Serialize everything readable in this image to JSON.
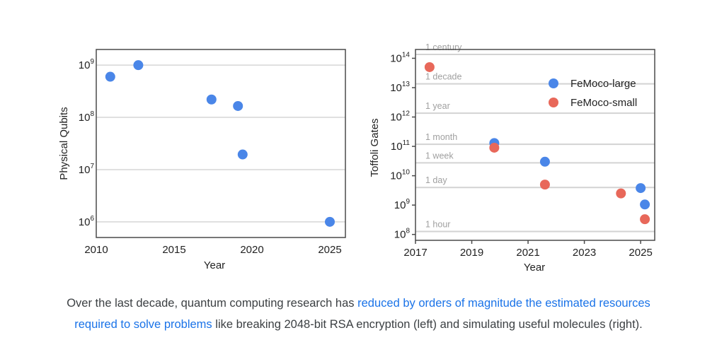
{
  "chart_data": [
    {
      "type": "scatter",
      "xlabel": "Year",
      "ylabel": "Physical Qubits",
      "yscale": "log",
      "xlim": [
        2010,
        2026
      ],
      "ylim_log10": [
        5.7,
        9.3
      ],
      "xticks": [
        2010,
        2015,
        2020,
        2025
      ],
      "ytick_exponents": [
        6,
        7,
        8,
        9
      ],
      "grid": "horizontal",
      "series": [
        {
          "name": "Physical qubits",
          "color": "#4a86e8",
          "points": [
            {
              "x": 2010.9,
              "y": 600000000
            },
            {
              "x": 2012.7,
              "y": 1000000000
            },
            {
              "x": 2017.4,
              "y": 220000000
            },
            {
              "x": 2019.1,
              "y": 165000000
            },
            {
              "x": 2019.4,
              "y": 19500000
            },
            {
              "x": 2025.0,
              "y": 1000000
            }
          ]
        }
      ]
    },
    {
      "type": "scatter",
      "xlabel": "Year",
      "ylabel": "Toffoli Gates",
      "yscale": "log",
      "xlim": [
        2017,
        2025.5
      ],
      "ylim_log10": [
        7.8,
        14.3
      ],
      "xticks": [
        2017,
        2019,
        2021,
        2023,
        2025
      ],
      "ytick_exponents": [
        8,
        9,
        10,
        11,
        12,
        13,
        14
      ],
      "time_lines": [
        {
          "label": "1 century",
          "log10": 14.13
        },
        {
          "label": "1 decade",
          "log10": 13.13
        },
        {
          "label": "1 year",
          "log10": 12.13
        },
        {
          "label": "1 month",
          "log10": 11.07
        },
        {
          "label": "1 week",
          "log10": 10.44
        },
        {
          "label": "1 day",
          "log10": 9.6
        },
        {
          "label": "1 hour",
          "log10": 8.1
        }
      ],
      "legend_position": "top-right",
      "series": [
        {
          "name": "FeMoco-large",
          "color": "#4a86e8",
          "points": [
            {
              "x": 2019.8,
              "y": 130000000000
            },
            {
              "x": 2021.6,
              "y": 30000000000
            },
            {
              "x": 2025.0,
              "y": 3800000000
            },
            {
              "x": 2025.15,
              "y": 1050000000
            }
          ]
        },
        {
          "name": "FeMoco-small",
          "color": "#e8685a",
          "points": [
            {
              "x": 2017.5,
              "y": 50000000000000
            },
            {
              "x": 2019.8,
              "y": 90000000000
            },
            {
              "x": 2021.6,
              "y": 5000000000
            },
            {
              "x": 2024.3,
              "y": 2500000000
            },
            {
              "x": 2025.15,
              "y": 330000000
            }
          ]
        }
      ]
    }
  ],
  "caption": {
    "before": "Over the last decade, quantum computing research has ",
    "link_line1": "reduced by orders of magnitude the estimated resources",
    "link_line2": "required to solve problems",
    "after": " like breaking 2048-bit RSA encryption (left) and simulating useful molecules (right)."
  }
}
